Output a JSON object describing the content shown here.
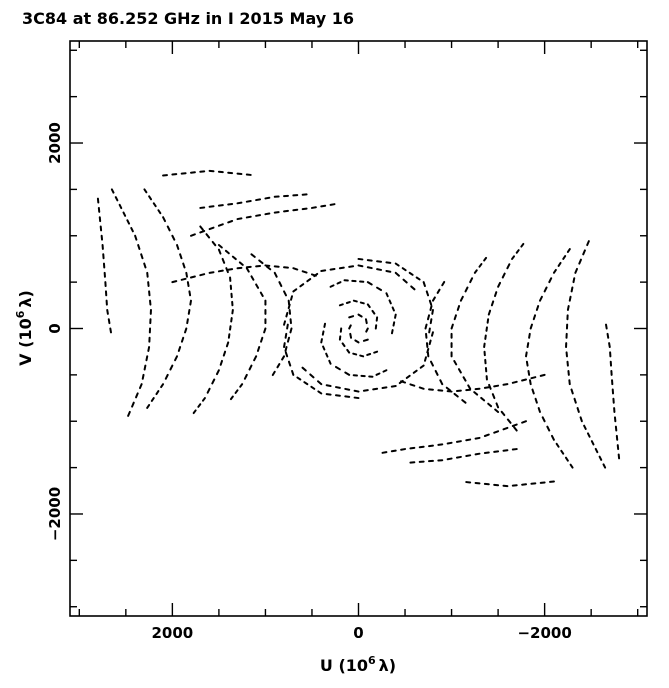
{
  "chart_data": {
    "type": "scatter",
    "title": "3C84 at 86.252 GHz in I  2015 May 16",
    "xlabel": "U (10",
    "ylabel": "V (10",
    "axis_label_exponent": "6",
    "axis_label_unit": "λ)",
    "xlim": [
      3100,
      -3100
    ],
    "ylim": [
      -3100,
      3100
    ],
    "x_ticks": [
      2000,
      0,
      -2000
    ],
    "x_tick_labels": [
      "2000",
      "0",
      "−2000"
    ],
    "y_ticks": [
      2000,
      0,
      -2000
    ],
    "y_tick_labels": [
      "2000",
      "0",
      "−2000"
    ],
    "grid": false,
    "series": [
      {
        "tracks": [
          {
            "points": [
              [
                800,
                40
              ],
              [
                700,
                400
              ],
              [
                400,
                620
              ],
              [
                0,
                680
              ],
              [
                -400,
                600
              ],
              [
                -650,
                380
              ]
            ],
            "symmetric": true
          },
          {
            "points": [
              [
                0,
                750
              ],
              [
                -400,
                700
              ],
              [
                -700,
                500
              ],
              [
                -800,
                200
              ],
              [
                -750,
                -100
              ]
            ],
            "symmetric": true
          },
          {
            "points": [
              [
                300,
                450
              ],
              [
                150,
                520
              ],
              [
                -100,
                500
              ],
              [
                -300,
                380
              ],
              [
                -400,
                150
              ],
              [
                -350,
                -100
              ]
            ],
            "symmetric": true
          },
          {
            "points": [
              [
                200,
                250
              ],
              [
                50,
                300
              ],
              [
                -100,
                260
              ],
              [
                -200,
                120
              ],
              [
                -180,
                -50
              ]
            ],
            "symmetric": true
          },
          {
            "points": [
              [
                100,
                120
              ],
              [
                0,
                150
              ],
              [
                -80,
                100
              ],
              [
                -100,
                0
              ],
              [
                -60,
                -80
              ]
            ],
            "symmetric": true
          },
          {
            "points": [
              [
                1800,
                1000
              ],
              [
                1300,
                1180
              ],
              [
                900,
                1250
              ],
              [
                500,
                1300
              ],
              [
                200,
                1350
              ]
            ],
            "symmetric": true
          },
          {
            "points": [
              [
                2000,
                500
              ],
              [
                1600,
                600
              ],
              [
                1300,
                650
              ],
              [
                1000,
                680
              ],
              [
                700,
                650
              ],
              [
                400,
                550
              ]
            ],
            "symmetric": true
          },
          {
            "points": [
              [
                1500,
                900
              ],
              [
                1200,
                650
              ],
              [
                1000,
                300
              ],
              [
                1000,
                0
              ],
              [
                1100,
                -300
              ],
              [
                1250,
                -600
              ],
              [
                1400,
                -800
              ]
            ],
            "symmetric": true
          },
          {
            "points": [
              [
                1150,
                800
              ],
              [
                900,
                600
              ],
              [
                750,
                300
              ],
              [
                720,
                0
              ],
              [
                800,
                -300
              ],
              [
                950,
                -550
              ]
            ],
            "symmetric": true
          },
          {
            "points": [
              [
                1700,
                1100
              ],
              [
                1500,
                850
              ],
              [
                1380,
                550
              ],
              [
                1350,
                200
              ],
              [
                1400,
                -150
              ],
              [
                1500,
                -450
              ],
              [
                1650,
                -750
              ],
              [
                1800,
                -950
              ]
            ],
            "symmetric": true
          },
          {
            "points": [
              [
                2300,
                1500
              ],
              [
                2100,
                1200
              ],
              [
                1950,
                900
              ],
              [
                1850,
                600
              ],
              [
                1800,
                300
              ],
              [
                1850,
                0
              ],
              [
                1950,
                -300
              ],
              [
                2100,
                -600
              ],
              [
                2300,
                -900
              ]
            ],
            "symmetric": true
          },
          {
            "points": [
              [
                2650,
                1500
              ],
              [
                2400,
                1000
              ],
              [
                2270,
                600
              ],
              [
                2230,
                200
              ],
              [
                2250,
                -200
              ],
              [
                2330,
                -600
              ],
              [
                2500,
                -1000
              ]
            ],
            "symmetric": true
          },
          {
            "points": [
              [
                2800,
                1400
              ],
              [
                2750,
                900
              ],
              [
                2720,
                500
              ],
              [
                2700,
                200
              ],
              [
                2650,
                -100
              ]
            ],
            "symmetric": true
          },
          {
            "points": [
              [
                2100,
                1650
              ],
              [
                1600,
                1700
              ],
              [
                1100,
                1650
              ]
            ],
            "symmetric": true
          },
          {
            "points": [
              [
                1700,
                1300
              ],
              [
                1300,
                1350
              ],
              [
                900,
                1420
              ],
              [
                500,
                1450
              ]
            ],
            "symmetric": true
          }
        ]
      }
    ]
  }
}
